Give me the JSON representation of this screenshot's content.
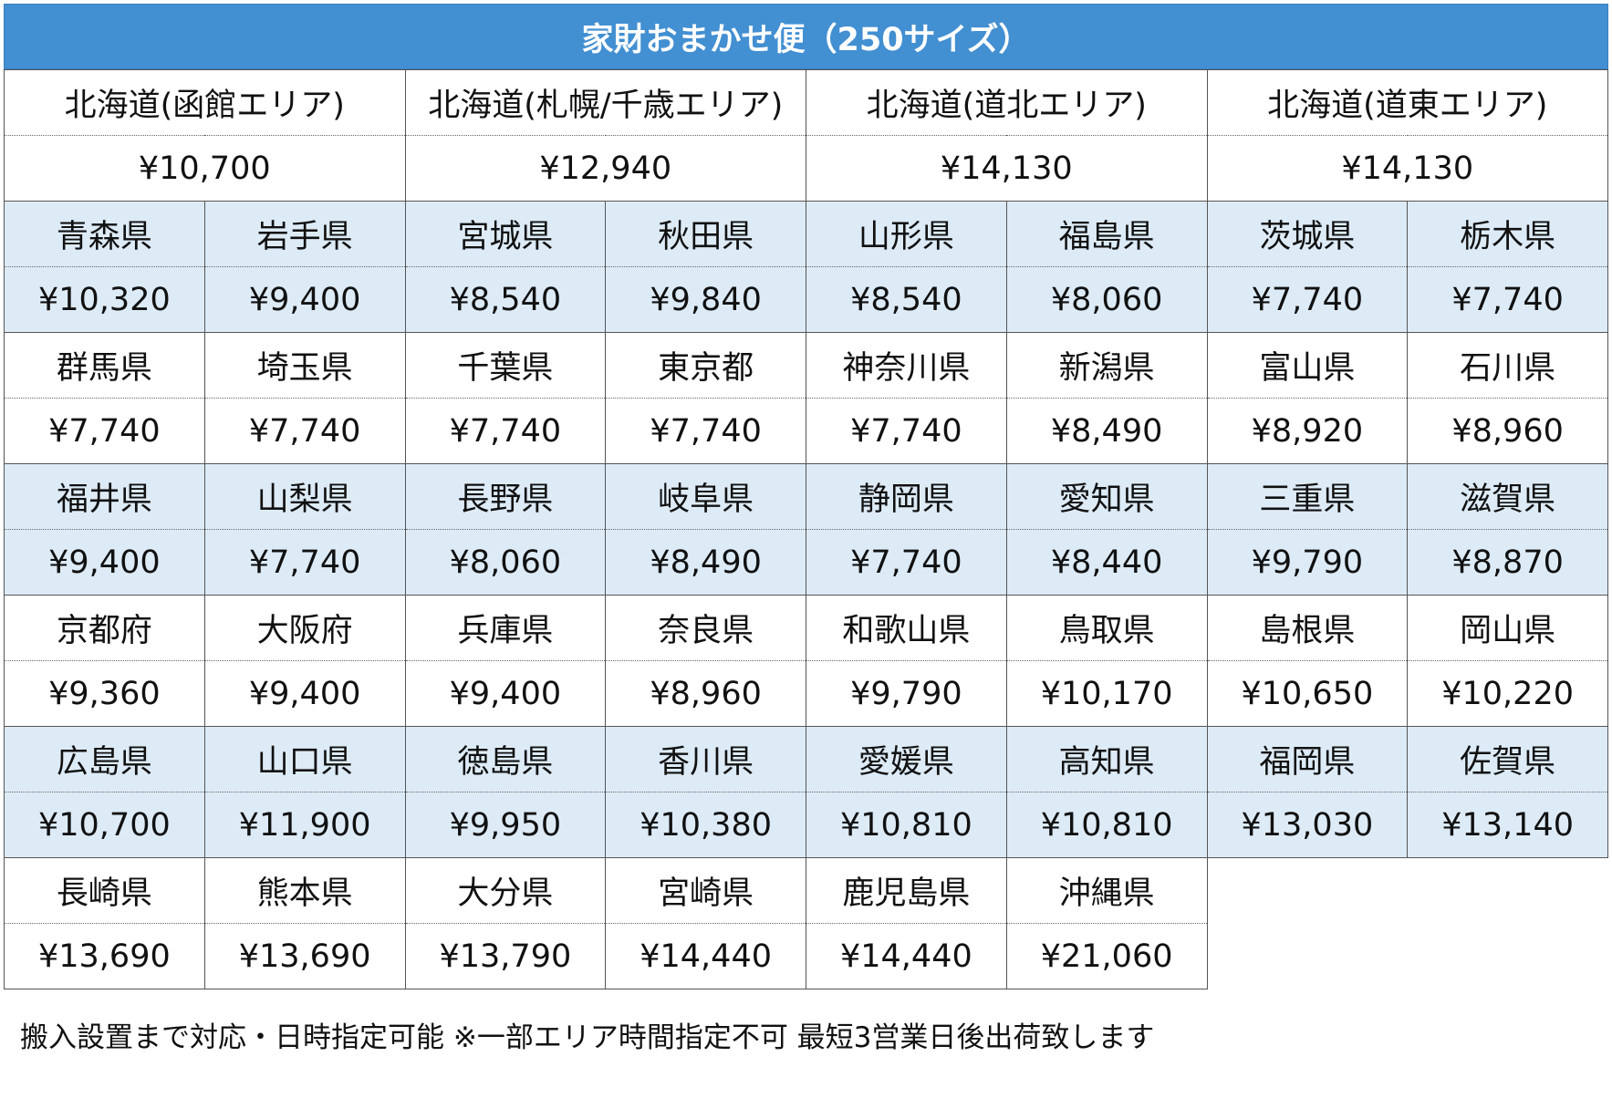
{
  "title": "家財おまかせ便（250サイズ）",
  "hokkaido": [
    {
      "area": "北海道(函館エリア)",
      "price": "¥10,700"
    },
    {
      "area": "北海道(札幌/千歳エリア)",
      "price": "¥12,940"
    },
    {
      "area": "北海道(道北エリア)",
      "price": "¥14,130"
    },
    {
      "area": "北海道(道東エリア)",
      "price": "¥14,130"
    }
  ],
  "groups": [
    {
      "names": [
        "青森県",
        "岩手県",
        "宮城県",
        "秋田県",
        "山形県",
        "福島県",
        "茨城県",
        "栃木県"
      ],
      "prices": [
        "¥10,320",
        "¥9,400",
        "¥8,540",
        "¥9,840",
        "¥8,540",
        "¥8,060",
        "¥7,740",
        "¥7,740"
      ]
    },
    {
      "names": [
        "群馬県",
        "埼玉県",
        "千葉県",
        "東京都",
        "神奈川県",
        "新潟県",
        "富山県",
        "石川県"
      ],
      "prices": [
        "¥7,740",
        "¥7,740",
        "¥7,740",
        "¥7,740",
        "¥7,740",
        "¥8,490",
        "¥8,920",
        "¥8,960"
      ]
    },
    {
      "names": [
        "福井県",
        "山梨県",
        "長野県",
        "岐阜県",
        "静岡県",
        "愛知県",
        "三重県",
        "滋賀県"
      ],
      "prices": [
        "¥9,400",
        "¥7,740",
        "¥8,060",
        "¥8,490",
        "¥7,740",
        "¥8,440",
        "¥9,790",
        "¥8,870"
      ]
    },
    {
      "names": [
        "京都府",
        "大阪府",
        "兵庫県",
        "奈良県",
        "和歌山県",
        "鳥取県",
        "島根県",
        "岡山県"
      ],
      "prices": [
        "¥9,360",
        "¥9,400",
        "¥9,400",
        "¥8,960",
        "¥9,790",
        "¥10,170",
        "¥10,650",
        "¥10,220"
      ]
    },
    {
      "names": [
        "広島県",
        "山口県",
        "徳島県",
        "香川県",
        "愛媛県",
        "高知県",
        "福岡県",
        "佐賀県"
      ],
      "prices": [
        "¥10,700",
        "¥11,900",
        "¥9,950",
        "¥10,380",
        "¥10,810",
        "¥10,810",
        "¥13,030",
        "¥13,140"
      ]
    },
    {
      "names": [
        "長崎県",
        "熊本県",
        "大分県",
        "宮崎県",
        "鹿児島県",
        "沖縄県"
      ],
      "prices": [
        "¥13,690",
        "¥13,690",
        "¥13,790",
        "¥14,440",
        "¥14,440",
        "¥21,060"
      ]
    }
  ],
  "footer": "搬入設置まで対応・日時指定可能 ※一部エリア時間指定不可 最短3営業日後出荷致します",
  "colors": {
    "header": "#428fd2",
    "band": "#ddebf7"
  }
}
